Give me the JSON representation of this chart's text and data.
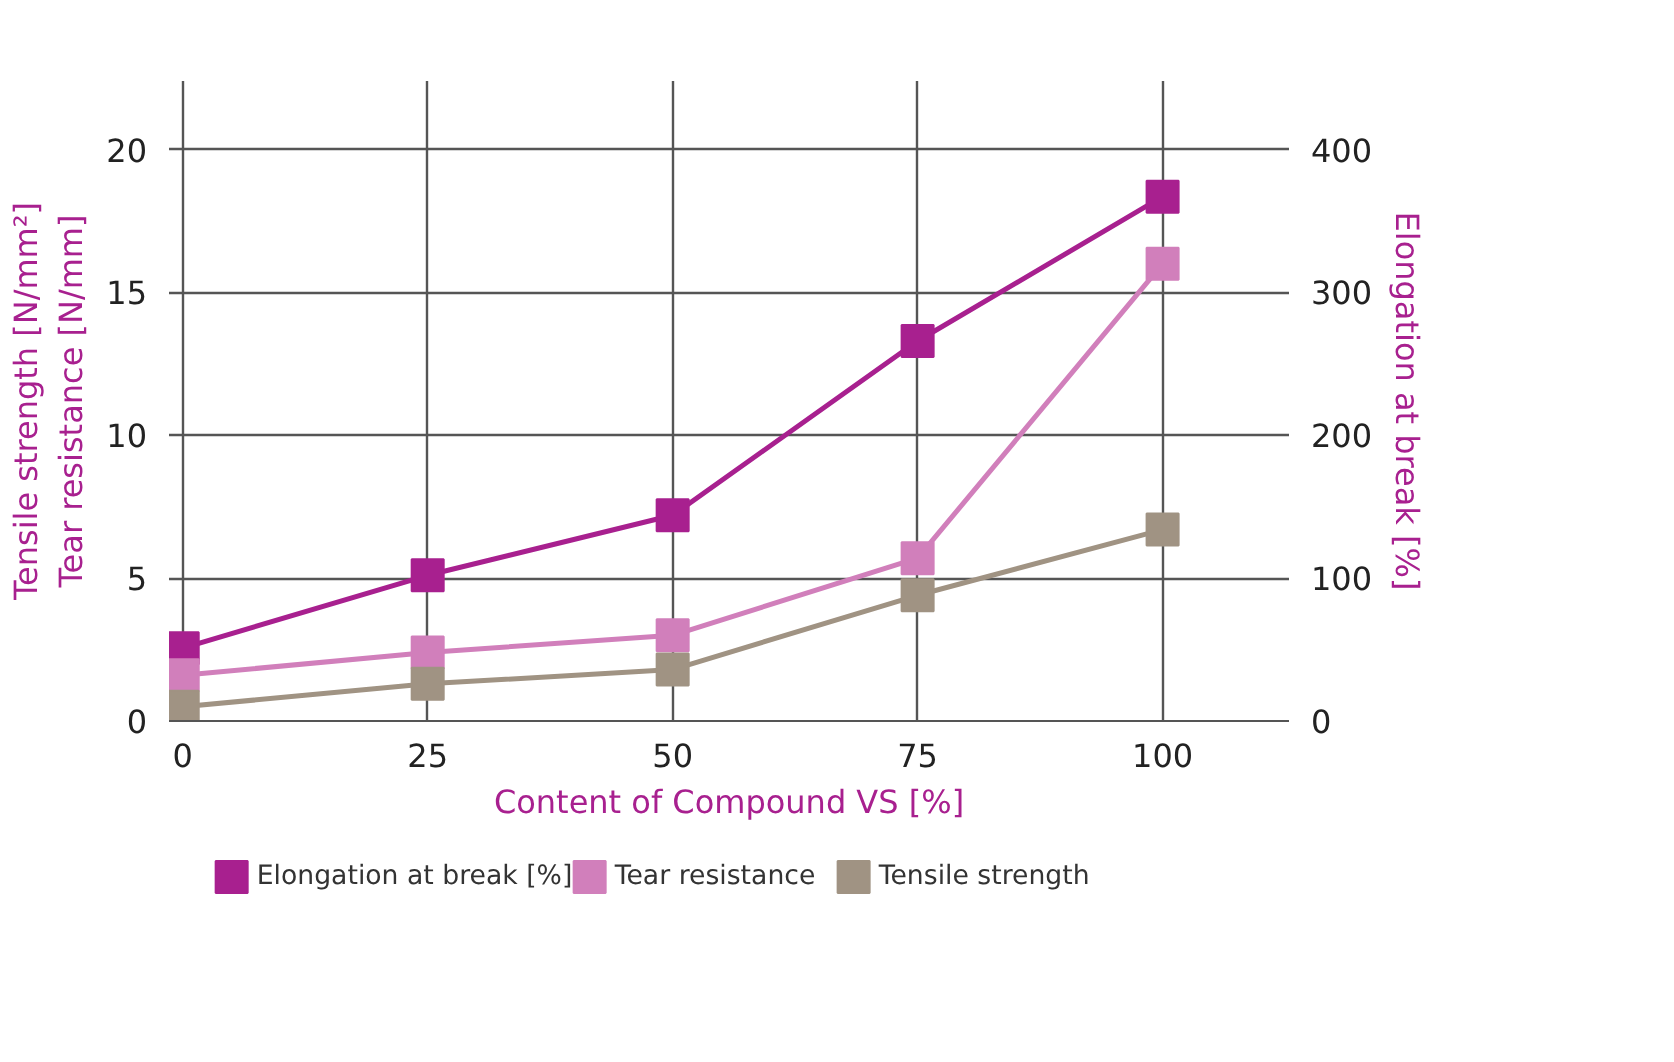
{
  "chart_data": {
    "type": "line",
    "xlabel": "Content of Compound VS [%]",
    "ylabel": "Tensile strength [N/mm²]\nTear resistance [N/mm]",
    "y2label": "Elongation at break [%]",
    "x": [
      0,
      25,
      50,
      75,
      100
    ],
    "xlim": [
      -1.4,
      112.9
    ],
    "xticks": [
      0,
      25,
      50,
      75,
      100
    ],
    "ylim": [
      0,
      22.4
    ],
    "yticks": [
      0,
      5,
      10,
      15,
      20
    ],
    "y2lim": [
      0,
      448
    ],
    "y2ticks": [
      0,
      100,
      200,
      300,
      400
    ],
    "series": [
      {
        "name": "Elongation at break [%]",
        "color": "#a8208f",
        "axis": "y2",
        "values": [
          51,
          102,
          144,
          266,
          367
        ]
      },
      {
        "name": "Tear resistance",
        "color": "#d17fbb",
        "values": [
          1.6,
          2.4,
          3.0,
          5.7,
          16.0
        ]
      },
      {
        "name": "Tensile strength",
        "color": "#a09383",
        "values": [
          0.5,
          1.3,
          1.8,
          4.4,
          6.7
        ]
      }
    ],
    "marker": "square",
    "line_style": "solid",
    "grid": true,
    "legend": "bottom"
  }
}
